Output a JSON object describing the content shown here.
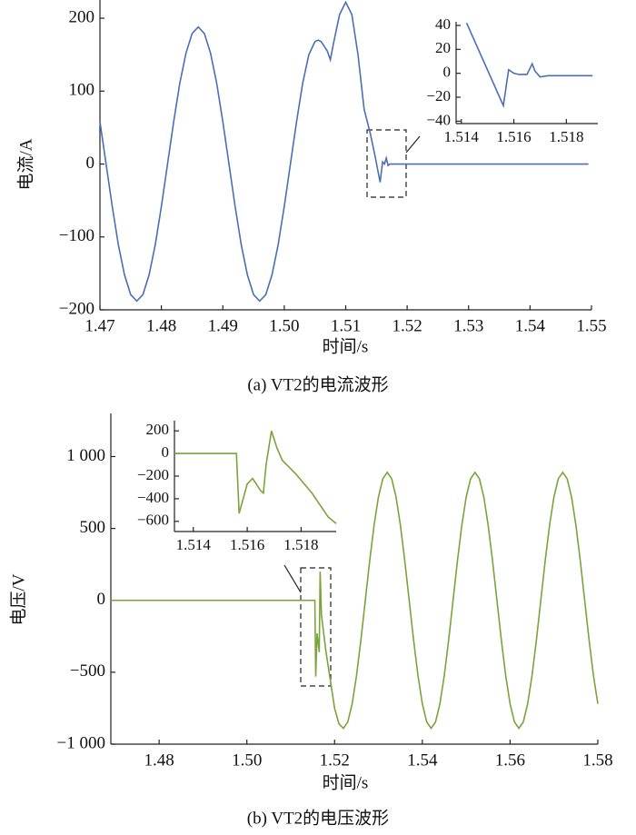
{
  "chart_data": [
    {
      "type": "line",
      "ylabel": "电流/A",
      "xlabel": "时间/s",
      "caption": "(a)  VT2的电流波形",
      "color": "#4a6fb5",
      "x": [
        1.47,
        1.471,
        1.472,
        1.473,
        1.474,
        1.475,
        1.476,
        1.477,
        1.478,
        1.479,
        1.48,
        1.481,
        1.482,
        1.483,
        1.484,
        1.485,
        1.486,
        1.487,
        1.488,
        1.489,
        1.49,
        1.491,
        1.492,
        1.493,
        1.494,
        1.495,
        1.496,
        1.497,
        1.498,
        1.499,
        1.5,
        1.501,
        1.502,
        1.503,
        1.504,
        1.505,
        1.5055,
        1.506,
        1.507,
        1.5075,
        1.508,
        1.509,
        1.51,
        1.511,
        1.512,
        1.513,
        1.514,
        1.5148,
        1.5156,
        1.516,
        1.5163,
        1.5166,
        1.5169,
        1.5172,
        1.52,
        1.53,
        1.5495
      ],
      "values": [
        58,
        0,
        -58,
        -111,
        -152,
        -179,
        -188,
        -179,
        -152,
        -111,
        -58,
        0,
        58,
        111,
        152,
        179,
        188,
        179,
        152,
        111,
        58,
        0,
        -58,
        -111,
        -152,
        -179,
        -188,
        -179,
        -152,
        -111,
        -58,
        0,
        58,
        111,
        150,
        168,
        170,
        168,
        155,
        143,
        165,
        205,
        222,
        205,
        150,
        75,
        42,
        10,
        -25,
        3,
        0,
        8,
        -2,
        0,
        0,
        0,
        0
      ],
      "xlim": [
        1.47,
        1.55
      ],
      "ylim": [
        -200,
        225
      ],
      "xticks": [
        1.47,
        1.48,
        1.49,
        {
          "value": 1.5,
          "label": "1.50"
        },
        1.51,
        1.52,
        1.53,
        1.54,
        1.55
      ],
      "yticks": [
        {
          "value": -200,
          "label": "−200"
        },
        {
          "value": -100,
          "label": "−100"
        },
        0,
        100,
        200
      ]
    },
    {
      "type": "line",
      "color": "#4a6fb5",
      "x": [
        1.5142,
        1.5156,
        1.5158,
        1.516,
        1.5162,
        1.5165,
        1.5167,
        1.5168,
        1.517,
        1.5173,
        1.519
      ],
      "values": [
        42,
        -27,
        3,
        0,
        -1,
        -1,
        8,
        2,
        -3,
        -2,
        -2
      ],
      "xlim": [
        1.5138,
        1.5192
      ],
      "ylim": [
        -42,
        43
      ],
      "xticks": [
        1.514,
        1.516,
        1.518
      ],
      "yticks": [
        {
          "value": -40,
          "label": "−40"
        },
        {
          "value": -20,
          "label": "−20"
        },
        0,
        20,
        40
      ]
    },
    {
      "type": "line",
      "ylabel": "电压/V",
      "xlabel": "时间/s",
      "caption": "(b)  VT2的电压波形",
      "color": "#7aa43a",
      "x": [
        1.469,
        1.5155,
        1.5157,
        1.516,
        1.5165,
        1.5167,
        1.517,
        1.518,
        1.519,
        1.52,
        1.521,
        1.522,
        1.523,
        1.524,
        1.525,
        1.526,
        1.527,
        1.528,
        1.529,
        1.53,
        1.531,
        1.532,
        1.533,
        1.534,
        1.535,
        1.536,
        1.537,
        1.538,
        1.539,
        1.54,
        1.541,
        1.542,
        1.543,
        1.544,
        1.545,
        1.546,
        1.547,
        1.548,
        1.549,
        1.55,
        1.551,
        1.552,
        1.553,
        1.554,
        1.555,
        1.556,
        1.557,
        1.558,
        1.559,
        1.56,
        1.561,
        1.562,
        1.563,
        1.564,
        1.565,
        1.566,
        1.567,
        1.568,
        1.569,
        1.57,
        1.571,
        1.572,
        1.573,
        1.574,
        1.575,
        1.576,
        1.577,
        1.578,
        1.579,
        1.58
      ],
      "values": [
        0,
        0,
        -530,
        -230,
        -360,
        200,
        -100,
        -350,
        -550,
        -750,
        -860,
        -890,
        -846,
        -720,
        -523,
        -275,
        0,
        275,
        523,
        720,
        846,
        890,
        846,
        720,
        523,
        275,
        0,
        -275,
        -523,
        -720,
        -846,
        -890,
        -846,
        -720,
        -523,
        -275,
        0,
        275,
        523,
        720,
        846,
        890,
        846,
        720,
        523,
        275,
        0,
        -275,
        -523,
        -720,
        -846,
        -890,
        -846,
        -720,
        -523,
        -275,
        0,
        275,
        523,
        720,
        846,
        890,
        846,
        720,
        523,
        275,
        0,
        -275,
        -523,
        -720
      ],
      "xlim": [
        1.469,
        1.58
      ],
      "ylim": [
        -1000,
        1300
      ],
      "xticks": [
        1.48,
        {
          "value": 1.5,
          "label": "1.50"
        },
        1.52,
        1.54,
        1.56,
        1.58
      ],
      "yticks": [
        {
          "value": -1000,
          "label": "−1 000"
        },
        {
          "value": -500,
          "label": "−500"
        },
        0,
        500,
        {
          "value": 1000,
          "label": "1 000"
        }
      ]
    },
    {
      "type": "line",
      "color": "#7aa43a",
      "x": [
        1.5133,
        1.5156,
        1.5157,
        1.516,
        1.5162,
        1.5165,
        1.5166,
        1.5167,
        1.5169,
        1.5171,
        1.5173,
        1.5178,
        1.5184,
        1.519,
        1.5193
      ],
      "values": [
        0,
        0,
        -530,
        -270,
        -220,
        -330,
        -350,
        -100,
        200,
        50,
        -60,
        -180,
        -350,
        -560,
        -620
      ],
      "xlim": [
        1.5133,
        1.5193
      ],
      "ylim": [
        -690,
        290
      ],
      "xticks": [
        1.514,
        1.516,
        1.518
      ],
      "yticks": [
        {
          "value": -600,
          "label": "−600"
        },
        {
          "value": -400,
          "label": "−400"
        },
        {
          "value": -200,
          "label": "−200"
        },
        0,
        200
      ]
    }
  ]
}
